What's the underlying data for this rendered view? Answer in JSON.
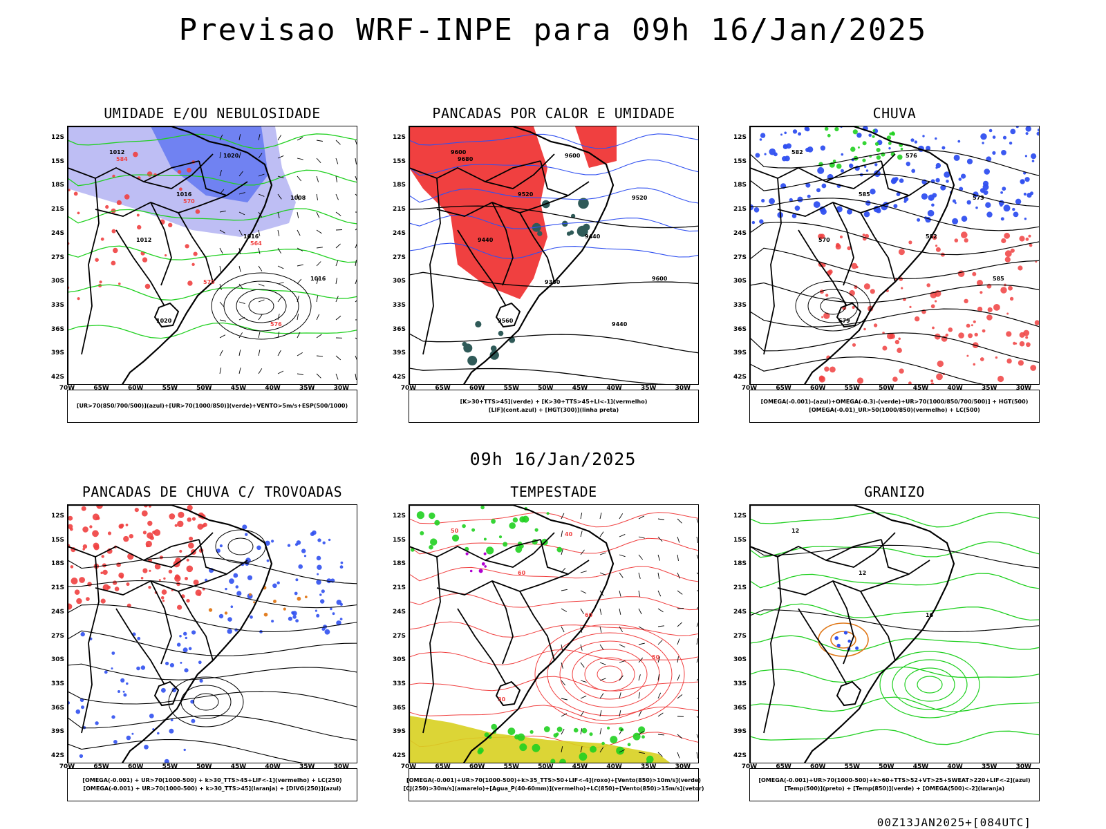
{
  "page": {
    "title": "Previsao WRF-INPE  para 09h 16/Jan/2025",
    "subtitle": "09h 16/Jan/2025",
    "footer": "00Z13JAN2025+[084UTC]"
  },
  "axes": {
    "lat_labels": [
      "12S",
      "15S",
      "18S",
      "21S",
      "24S",
      "27S",
      "30S",
      "33S",
      "36S",
      "39S",
      "42S"
    ],
    "lon_labels": [
      "70W",
      "65W",
      "60W",
      "55W",
      "50W",
      "45W",
      "40W",
      "35W",
      "30W"
    ]
  },
  "colors": {
    "red": "#f04040",
    "green": "#20d020",
    "blue": "#3050f0",
    "lavender": "#a8a8f0",
    "dark_teal": "#2f5a58",
    "yellow": "#d8d020",
    "purple": "#b000d0",
    "orange": "#e07818"
  },
  "panels": [
    {
      "id": "umidade",
      "title": "UMIDADE E/OU NEBULOSIDADE",
      "legend": [
        "[UR>70(850/700/500)](azul)+[UR>70(1000/850)](verde)+VENTO>5m/s+ESP(500/1000)"
      ],
      "labels": [
        "1012",
        "1016",
        "1016",
        "1016",
        "1020",
        "1020",
        "1008",
        "1012",
        "570",
        "576",
        "584",
        "570",
        "564"
      ]
    },
    {
      "id": "pancadas",
      "title": "PANCADAS POR CALOR E UMIDADE",
      "legend": [
        "[K>30+TTS>45](verde) + [K>30+TTS>45+LI<-1](vermelho)",
        "[LIF](cont.azul) + [HGT(300)](linha preta)"
      ],
      "labels": [
        "9600",
        "9520",
        "9440",
        "9600",
        "9560",
        "9600",
        "9520",
        "9440",
        "9360",
        "9440",
        "9680"
      ]
    },
    {
      "id": "chuva",
      "title": "CHUVA",
      "legend": [
        "[OMEGA(-0.001)-(azul)+OMEGA(-0.3)-(verde)+UR>70(1000/850/700/500)] + HGT(500)",
        "[OMEGA(-0.01)_UR>50(1000/850)(vermelho) + LC(500)"
      ],
      "labels": [
        "582",
        "585",
        "582",
        "585",
        "579",
        "576",
        "573",
        "570"
      ]
    },
    {
      "id": "trovoadas",
      "title": "PANCADAS DE CHUVA C/ TROVOADAS",
      "legend": [
        "[OMEGA(-0.001) + UR>70(1000-500) + k>30_TTS>45+LIF<-1](vermelho) + LC(250)",
        "[OMEGA(-0.001) + UR>70(1000-500) + k>30_TTS>45](laranja) + [DIVG(250)](azul)"
      ],
      "labels": []
    },
    {
      "id": "tempestade",
      "title": "TEMPESTADE",
      "legend": [
        "[OMEGA(-0.001)+UR>70(1000-500)+k>35_TTS>50+LIF<-4](roxo)+[Vento(850)>10m/s](verde)",
        "[CJ(250)>30m/s](amarelo)+[Agua_P(40-60mm)](vermelho)+LC(850)+[Vento(850)>15m/s](vetor)"
      ],
      "labels": [
        "50",
        "60",
        "60",
        "50",
        "30",
        "40"
      ]
    },
    {
      "id": "granizo",
      "title": "GRANIZO",
      "legend": [
        "[OMEGA(-0.001)+UR>70(1000-500)+k>60+TTS>52+VT>25+SWEAT>220+LIF<-2](azul)",
        "[Temp(500)](preto) + [Temp(850)](verde) + [OMEGA(500)<-2](laranja)"
      ],
      "labels": [
        "12",
        "12",
        "16"
      ]
    }
  ]
}
